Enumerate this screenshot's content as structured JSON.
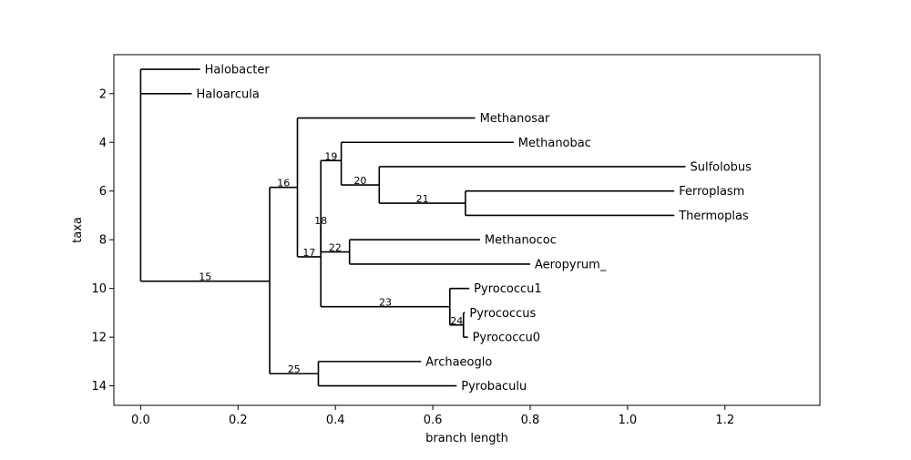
{
  "chart_data": {
    "type": "phylogenetic-tree",
    "xlabel": "branch length",
    "ylabel": "taxa",
    "xlim": [
      -0.055,
      1.395
    ],
    "ylim": [
      14.8,
      0.4
    ],
    "x_ticks": [
      0.0,
      0.2,
      0.4,
      0.6,
      0.8,
      1.0,
      1.2
    ],
    "x_tick_labels": [
      "0.0",
      "0.2",
      "0.4",
      "0.6",
      "0.8",
      "1.0",
      "1.2"
    ],
    "y_ticks": [
      2,
      4,
      6,
      8,
      10,
      12,
      14
    ],
    "y_tick_labels": [
      "2",
      "4",
      "6",
      "8",
      "10",
      "12",
      "14"
    ],
    "nodes": [
      {
        "id": "root",
        "x": 0.0,
        "y": 5.35,
        "children": [
          "Halobacter",
          "Haloarcula",
          "15"
        ]
      },
      {
        "id": "15",
        "label": "15",
        "x": 0.265,
        "y": 9.7,
        "children": [
          "16",
          "25"
        ]
      },
      {
        "id": "16",
        "label": "16",
        "x": 0.322,
        "y": 5.85,
        "children": [
          "Methanosar",
          "17"
        ]
      },
      {
        "id": "17",
        "label": "17",
        "x": 0.37,
        "y": 8.7,
        "children": [
          "18",
          "23"
        ]
      },
      {
        "id": "18",
        "label": "18",
        "x": 0.37,
        "y": 7.4,
        "children": [
          "19",
          "22"
        ]
      },
      {
        "id": "19",
        "label": "19",
        "x": 0.412,
        "y": 4.75,
        "children": [
          "Methanobac",
          "20"
        ]
      },
      {
        "id": "20",
        "label": "20",
        "x": 0.49,
        "y": 5.75,
        "children": [
          "Sulfolobus",
          "21"
        ]
      },
      {
        "id": "21",
        "label": "21",
        "x": 0.667,
        "y": 6.5,
        "children": [
          "Ferroplasm",
          "Thermoplas"
        ]
      },
      {
        "id": "22",
        "label": "22",
        "x": 0.429,
        "y": 8.5,
        "children": [
          "Methanococ",
          "Aeropyrum_"
        ]
      },
      {
        "id": "23",
        "label": "23",
        "x": 0.635,
        "y": 10.75,
        "children": [
          "Pyrococcu1",
          "24"
        ]
      },
      {
        "id": "24",
        "label": "24",
        "x": 0.663,
        "y": 11.5,
        "children": [
          "Pyrococcus",
          "Pyrococcu0"
        ]
      },
      {
        "id": "25",
        "label": "25",
        "x": 0.365,
        "y": 13.5,
        "children": [
          "Archaeoglo",
          "Pyrobaculu"
        ]
      }
    ],
    "leaves": [
      {
        "id": "Halobacter",
        "label": "Halobacter",
        "x": 0.122,
        "y": 1
      },
      {
        "id": "Haloarcula",
        "label": "Haloarcula",
        "x": 0.105,
        "y": 2
      },
      {
        "id": "Methanosar",
        "label": "Methanosar",
        "x": 0.687,
        "y": 3
      },
      {
        "id": "Methanobac",
        "label": "Methanobac",
        "x": 0.766,
        "y": 4
      },
      {
        "id": "Sulfolobus",
        "label": "Sulfolobus",
        "x": 1.119,
        "y": 5
      },
      {
        "id": "Ferroplasm",
        "label": "Ferroplasm",
        "x": 1.096,
        "y": 6
      },
      {
        "id": "Thermoplas",
        "label": "Thermoplas",
        "x": 1.096,
        "y": 7
      },
      {
        "id": "Methanococ",
        "label": "Methanococ",
        "x": 0.697,
        "y": 8
      },
      {
        "id": "Aeropyrum_",
        "label": "Aeropyrum_",
        "x": 0.8,
        "y": 9
      },
      {
        "id": "Pyrococcu1",
        "label": "Pyrococcu1",
        "x": 0.675,
        "y": 10
      },
      {
        "id": "Pyrococcus",
        "label": "Pyrococcus",
        "x": 0.666,
        "y": 11
      },
      {
        "id": "Pyrococcu0",
        "label": "Pyrococcu0",
        "x": 0.672,
        "y": 12
      },
      {
        "id": "Archaeoglo",
        "label": "Archaeoglo",
        "x": 0.576,
        "y": 13
      },
      {
        "id": "Pyrobaculu",
        "label": "Pyrobaculu",
        "x": 0.649,
        "y": 14
      }
    ]
  }
}
